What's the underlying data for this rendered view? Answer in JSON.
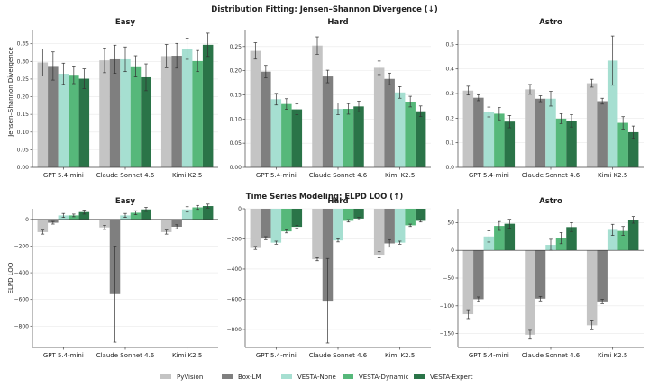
{
  "colors": [
    "#c4c4c4",
    "#7f7f7f",
    "#a6dfd1",
    "#56b87a",
    "#2a7448"
  ],
  "chart_data": [
    {
      "type": "bar",
      "title": "Distribution Fitting: Jensen–Shannon Divergence (↓)",
      "ylabel": "Jensen–Shannon Divergence",
      "categories": [
        "GPT 5.4-mini",
        "Claude Sonnet 4.6",
        "Kimi K2.5"
      ],
      "series_names": [
        "PyVision",
        "Box-LM",
        "VESTA-None",
        "VESTA-Dynamic",
        "VESTA-Expert"
      ],
      "grid": true,
      "panels": [
        {
          "subtitle": "Easy",
          "ylim": [
            0,
            0.39
          ],
          "yticks": [
            0.0,
            0.05,
            0.1,
            0.15,
            0.2,
            0.25,
            0.3,
            0.35
          ],
          "ytick_labels": [
            "0.00",
            "0.05",
            "0.10",
            "0.15",
            "0.20",
            "0.25",
            "0.30",
            "0.35"
          ],
          "values": [
            [
              0.297,
              0.287,
              0.265,
              0.262,
              0.251
            ],
            [
              0.303,
              0.306,
              0.306,
              0.286,
              0.255
            ],
            [
              0.315,
              0.316,
              0.336,
              0.301,
              0.347
            ]
          ],
          "errors": [
            [
              0.038,
              0.04,
              0.03,
              0.025,
              0.028
            ],
            [
              0.035,
              0.04,
              0.035,
              0.03,
              0.038
            ],
            [
              0.033,
              0.035,
              0.03,
              0.03,
              0.033
            ]
          ]
        },
        {
          "subtitle": "Hard",
          "ylim": [
            0,
            0.285
          ],
          "yticks": [
            0.0,
            0.05,
            0.1,
            0.15,
            0.2,
            0.25
          ],
          "ytick_labels": [
            "0.00",
            "0.05",
            "0.10",
            "0.15",
            "0.20",
            "0.25"
          ],
          "values": [
            [
              0.241,
              0.198,
              0.141,
              0.131,
              0.12
            ],
            [
              0.252,
              0.188,
              0.121,
              0.121,
              0.126
            ],
            [
              0.206,
              0.183,
              0.155,
              0.136,
              0.116
            ]
          ],
          "errors": [
            [
              0.017,
              0.013,
              0.012,
              0.011,
              0.011
            ],
            [
              0.018,
              0.013,
              0.012,
              0.011,
              0.011
            ],
            [
              0.014,
              0.012,
              0.012,
              0.011,
              0.011
            ]
          ]
        },
        {
          "subtitle": "Astro",
          "ylim": [
            0,
            0.56
          ],
          "yticks": [
            0.0,
            0.1,
            0.2,
            0.3,
            0.4,
            0.5
          ],
          "ytick_labels": [
            "0.0",
            "0.1",
            "0.2",
            "0.3",
            "0.4",
            "0.5"
          ],
          "values": [
            [
              0.312,
              0.283,
              0.225,
              0.218,
              0.186
            ],
            [
              0.317,
              0.279,
              0.279,
              0.198,
              0.189
            ],
            [
              0.342,
              0.269,
              0.434,
              0.181,
              0.143
            ]
          ],
          "errors": [
            [
              0.018,
              0.012,
              0.02,
              0.025,
              0.025
            ],
            [
              0.02,
              0.012,
              0.03,
              0.02,
              0.025
            ],
            [
              0.016,
              0.012,
              0.1,
              0.025,
              0.025
            ]
          ]
        }
      ]
    },
    {
      "type": "bar",
      "title": "Time Series Modeling: ELPD LOO (↑)",
      "ylabel": "ELPD LOO",
      "categories": [
        "GPT 5.4-mini",
        "Claude Sonnet 4.6",
        "Kimi K2.5"
      ],
      "series_names": [
        "PyVision",
        "Box-LM",
        "VESTA-None",
        "VESTA-Dynamic",
        "VESTA-Expert"
      ],
      "grid": true,
      "panels": [
        {
          "subtitle": "Easy",
          "ylim": [
            -960,
            80
          ],
          "yticks": [
            0,
            -200,
            -400,
            -600,
            -800
          ],
          "ytick_labels": [
            "0",
            "−200",
            "−400",
            "−600",
            "−800"
          ],
          "values": [
            [
              -95,
              -25,
              30,
              30,
              55
            ],
            [
              -60,
              -560,
              30,
              50,
              75
            ],
            [
              -95,
              -55,
              75,
              90,
              100
            ]
          ],
          "errors": [
            [
              15,
              10,
              15,
              10,
              15
            ],
            [
              15,
              360,
              15,
              15,
              15
            ],
            [
              15,
              15,
              20,
              15,
              15
            ]
          ]
        },
        {
          "subtitle": "Hard",
          "ylim": [
            -920,
            0
          ],
          "yticks": [
            0,
            -200,
            -400,
            -600,
            -800
          ],
          "ytick_labels": [
            "0",
            "−200",
            "−400",
            "−600",
            "−800"
          ],
          "values": [
            [
              -260,
              -195,
              -225,
              -150,
              -120
            ],
            [
              -335,
              -610,
              -210,
              -80,
              -65
            ],
            [
              -305,
              -230,
              -225,
              -110,
              -80
            ]
          ],
          "errors": [
            [
              10,
              10,
              10,
              10,
              10
            ],
            [
              10,
              280,
              10,
              8,
              8
            ],
            [
              20,
              25,
              10,
              8,
              8
            ]
          ]
        },
        {
          "subtitle": "Astro",
          "ylim": [
            -175,
            75
          ],
          "yticks": [
            50,
            0,
            -50,
            -100,
            -150
          ],
          "ytick_labels": [
            "50",
            "0",
            "−50",
            "−100",
            "−150"
          ],
          "values": [
            [
              -115,
              -88,
              25,
              44,
              48
            ],
            [
              -152,
              -87,
              10,
              22,
              42
            ],
            [
              -135,
              -92,
              37,
              35,
              55
            ]
          ],
          "errors": [
            [
              8,
              4,
              10,
              8,
              8
            ],
            [
              8,
              4,
              10,
              10,
              8
            ],
            [
              8,
              4,
              10,
              8,
              6
            ]
          ]
        }
      ]
    }
  ]
}
